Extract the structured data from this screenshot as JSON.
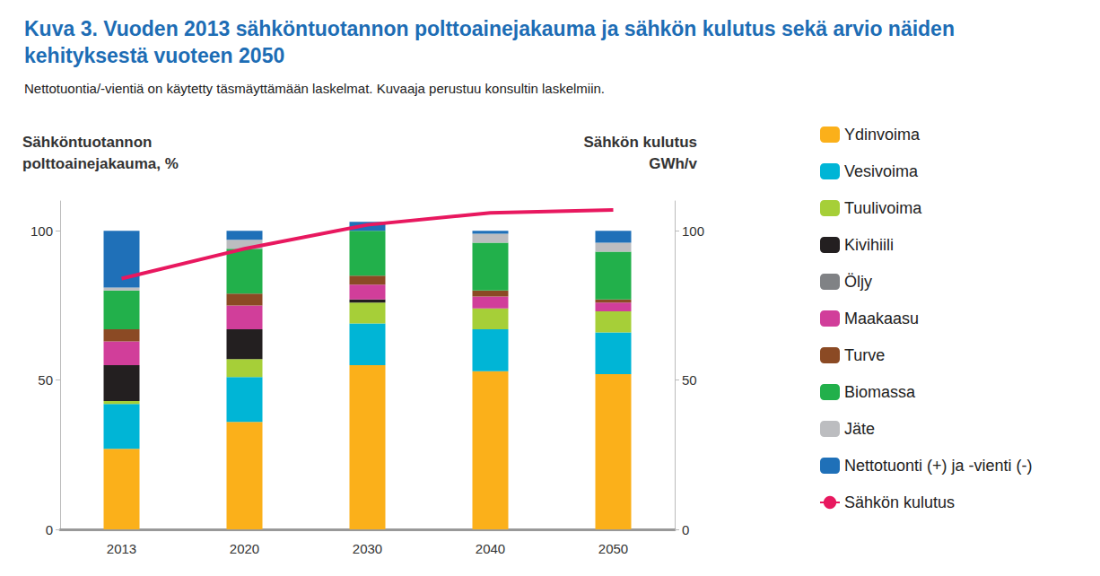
{
  "chart_data": {
    "type": "bar",
    "title": "Kuva 3. Vuoden 2013 sähköntuotannon polttoainejakauma ja sähkön kulutus sekä arvio näiden kehityksestä vuoteen 2050",
    "subtitle": "Nettotuontia/-vientiä on käytetty täsmäyttämään laskelmat. Kuvaaja perustuu konsultin laskelmiin.",
    "ylabel": "Sähköntuotannon\npolttoainejakauma, %",
    "y2label": "Sähkön kulutus\nGWh/v",
    "categories": [
      "2013",
      "2020",
      "2030",
      "2040",
      "2050"
    ],
    "stacked": true,
    "grid": false,
    "legend": "right",
    "ylim": [
      0,
      110
    ],
    "yticks": [
      0,
      50,
      100
    ],
    "y2lim": [
      0,
      110
    ],
    "y2ticks": [
      0,
      50,
      100
    ],
    "series": [
      {
        "name": "Ydinvoima",
        "type": "bar",
        "color": "#fbb01a",
        "values": [
          27,
          36,
          55,
          53,
          52
        ]
      },
      {
        "name": "Vesivoima",
        "type": "bar",
        "color": "#00b5d6",
        "values": [
          15,
          15,
          14,
          14,
          14
        ]
      },
      {
        "name": "Tuulivoima",
        "type": "bar",
        "color": "#a6cf38",
        "values": [
          1,
          6,
          7,
          7,
          7
        ]
      },
      {
        "name": "Kivihiili",
        "type": "bar",
        "color": "#231f20",
        "values": [
          12,
          10,
          1,
          0,
          0
        ]
      },
      {
        "name": "Öljy",
        "type": "bar",
        "color": "#808285",
        "values": [
          0,
          0,
          0,
          0,
          0
        ]
      },
      {
        "name": "Maakaasu",
        "type": "bar",
        "color": "#d13e9a",
        "values": [
          8,
          8,
          5,
          4,
          3
        ]
      },
      {
        "name": "Turve",
        "type": "bar",
        "color": "#8b4a24",
        "values": [
          4,
          4,
          3,
          2,
          1
        ]
      },
      {
        "name": "Biomassa",
        "type": "bar",
        "color": "#22b04b",
        "values": [
          13,
          15,
          15,
          16,
          16
        ]
      },
      {
        "name": "Jäte",
        "type": "bar",
        "color": "#bcbdc0",
        "values": [
          1,
          3,
          0,
          3,
          3
        ]
      },
      {
        "name": "Nettotuonti (+) ja -vienti (-)",
        "type": "bar",
        "color": "#1f70b8",
        "values": [
          19,
          3,
          3,
          1,
          4
        ]
      },
      {
        "name": "Sähkön kulutus",
        "type": "line",
        "axis": "y2",
        "color": "#e8185f",
        "values": [
          84,
          94,
          102,
          106,
          107
        ]
      }
    ]
  }
}
